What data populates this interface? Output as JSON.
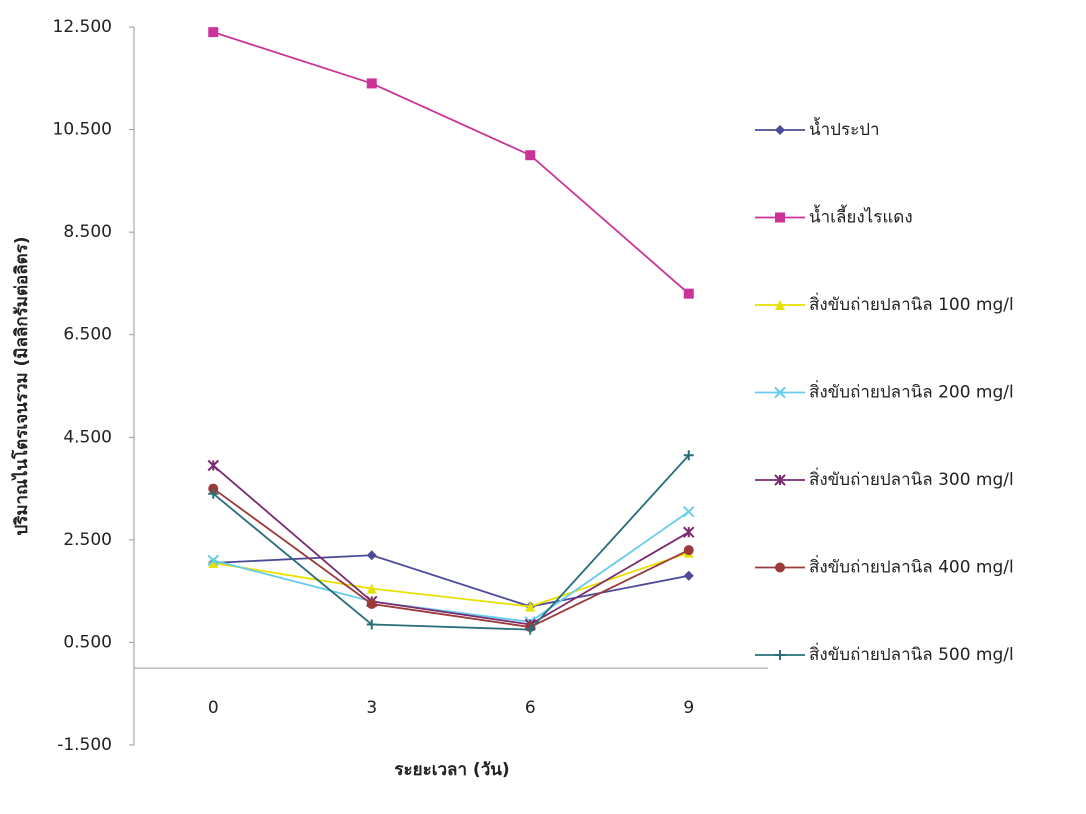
{
  "chart_data": {
    "type": "line",
    "y_label": "ปริมาณไนโตรเจนรวม (มิลลิกรัมต่อลิตร)",
    "x_label": "ระยะเวลา (วัน)",
    "categories": [
      "0",
      "3",
      "6",
      "9"
    ],
    "ylim": [
      -1.5,
      12.5
    ],
    "yticks": [
      {
        "value": -1.5,
        "label": "-1.500"
      },
      {
        "value": 0.5,
        "label": "0.500"
      },
      {
        "value": 2.5,
        "label": "2.500"
      },
      {
        "value": 4.5,
        "label": "4.500"
      },
      {
        "value": 6.5,
        "label": "6.500"
      },
      {
        "value": 8.5,
        "label": "8.500"
      },
      {
        "value": 10.5,
        "label": "10.500"
      },
      {
        "value": 12.5,
        "label": "12.500"
      }
    ],
    "legend": "right",
    "series": [
      {
        "name": "น้ำประปา",
        "color": "#4b4b9a",
        "marker": "diamond",
        "values": [
          2.05,
          2.2,
          1.2,
          1.8
        ]
      },
      {
        "name": "น้ำเลี้ยงไรแดง",
        "color": "#cc3399",
        "marker": "square",
        "values": [
          12.4,
          11.4,
          10.0,
          7.3
        ]
      },
      {
        "name": "สิ่งขับถ่ายปลานิล 100 mg/l",
        "color": "#e8e000",
        "marker": "triangle",
        "values": [
          2.05,
          1.55,
          1.2,
          2.25
        ]
      },
      {
        "name": "สิ่งขับถ่ายปลานิล  200 mg/l",
        "color": "#66ccee",
        "marker": "x",
        "values": [
          2.1,
          1.3,
          0.9,
          3.05
        ]
      },
      {
        "name": "สิ่งขับถ่ายปลานิล  300 mg/l",
        "color": "#7a2a6e",
        "marker": "star",
        "values": [
          3.95,
          1.3,
          0.85,
          2.65
        ]
      },
      {
        "name": "สิ่งขับถ่ายปลานิล  400 mg/l",
        "color": "#9a3a3a",
        "marker": "circle",
        "values": [
          3.5,
          1.25,
          0.8,
          2.3
        ]
      },
      {
        "name": "สิ่งขับถ่ายปลานิล  500 mg/l",
        "color": "#2a6e7a",
        "marker": "plus",
        "values": [
          3.4,
          0.85,
          0.75,
          4.15
        ]
      }
    ]
  }
}
